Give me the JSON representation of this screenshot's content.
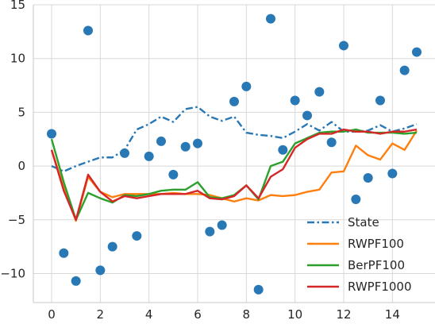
{
  "chart_data": {
    "type": "line",
    "title": "",
    "xlabel": "",
    "ylabel": "",
    "xlim": [
      -0.75,
      15.75
    ],
    "ylim": [
      -12.7,
      15
    ],
    "grid": true,
    "x_ticks": [
      0,
      2,
      4,
      6,
      8,
      10,
      12,
      14
    ],
    "y_ticks": [
      -10,
      -5,
      0,
      5,
      10,
      15
    ],
    "x_tick_labels": [
      "0",
      "2",
      "4",
      "6",
      "8",
      "10",
      "12",
      "14"
    ],
    "y_tick_labels": [
      "−10",
      "−5",
      "0",
      "5",
      "10",
      "15"
    ],
    "legend_position": "bottom-right",
    "x": [
      0,
      0.5,
      1,
      1.5,
      2,
      2.5,
      3,
      3.5,
      4,
      4.5,
      5,
      5.5,
      6,
      6.5,
      7,
      7.5,
      8,
      8.5,
      9,
      9.5,
      10,
      10.5,
      11,
      11.5,
      12,
      12.5,
      13,
      13.5,
      14,
      14.5,
      15
    ],
    "observations": {
      "color": "#2878b5",
      "values": [
        3.0,
        -8.1,
        -10.7,
        12.6,
        -9.7,
        -7.5,
        1.2,
        -6.5,
        0.9,
        2.3,
        -0.8,
        1.8,
        2.1,
        -6.1,
        -5.5,
        6.0,
        7.4,
        -11.5,
        13.7,
        1.5,
        6.1,
        4.7,
        6.9,
        2.2,
        11.2,
        -3.1,
        -1.1,
        6.1,
        -0.7,
        8.9,
        10.6
      ]
    },
    "series": [
      {
        "name": "State",
        "color": "#2878b5",
        "style": "dashdot",
        "values": [
          0.0,
          -0.5,
          0.0,
          0.4,
          0.8,
          0.8,
          1.5,
          3.4,
          3.9,
          4.6,
          4.1,
          5.3,
          5.5,
          4.6,
          4.2,
          4.6,
          3.1,
          2.9,
          2.8,
          2.6,
          3.2,
          3.9,
          3.3,
          4.1,
          3.2,
          3.2,
          3.3,
          3.8,
          3.2,
          3.5,
          3.9
        ]
      },
      {
        "name": "RWPF100",
        "color": "#ff7f0e",
        "style": "solid",
        "values": [
          1.5,
          -2.0,
          -5.1,
          -1.0,
          -2.4,
          -2.9,
          -2.6,
          -2.6,
          -2.6,
          -2.6,
          -2.5,
          -2.6,
          -2.6,
          -2.7,
          -3.0,
          -3.3,
          -3.0,
          -3.2,
          -2.7,
          -2.8,
          -2.7,
          -2.4,
          -2.2,
          -0.6,
          -0.5,
          1.9,
          1.0,
          0.6,
          2.1,
          1.5,
          3.3
        ]
      },
      {
        "name": "BerPF100",
        "color": "#2ca02c",
        "style": "solid",
        "values": [
          2.5,
          -1.5,
          -5.0,
          -2.5,
          -3.0,
          -3.4,
          -2.7,
          -2.8,
          -2.6,
          -2.3,
          -2.2,
          -2.2,
          -1.5,
          -2.9,
          -3.0,
          -2.7,
          -1.8,
          -3.1,
          0.0,
          0.4,
          2.1,
          2.6,
          3.1,
          3.2,
          3.2,
          3.4,
          3.1,
          3.1,
          3.1,
          3.0,
          3.1
        ]
      },
      {
        "name": "RWPF1000",
        "color": "#d62728",
        "style": "solid",
        "values": [
          1.5,
          -2.3,
          -5.0,
          -0.8,
          -2.4,
          -3.3,
          -2.8,
          -3.0,
          -2.8,
          -2.6,
          -2.6,
          -2.6,
          -2.3,
          -3.0,
          -3.1,
          -2.8,
          -1.8,
          -3.0,
          -1.0,
          -0.3,
          1.7,
          2.5,
          3.0,
          3.0,
          3.4,
          3.2,
          3.2,
          3.0,
          3.2,
          3.2,
          3.4
        ]
      }
    ]
  }
}
